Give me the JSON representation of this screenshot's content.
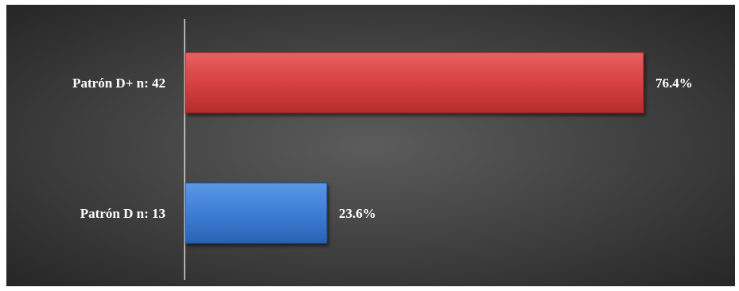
{
  "chart_data": {
    "type": "bar",
    "orientation": "horizontal",
    "categories": [
      "Patrón D+ n: 42",
      "Patrón D n: 13"
    ],
    "values": [
      76.4,
      23.6
    ],
    "value_labels": [
      "76.4%",
      "23.6%"
    ],
    "colors": [
      "#d94040",
      "#3f7fd6"
    ],
    "xlim": [
      0,
      100
    ],
    "grid": false,
    "legend": "none"
  }
}
